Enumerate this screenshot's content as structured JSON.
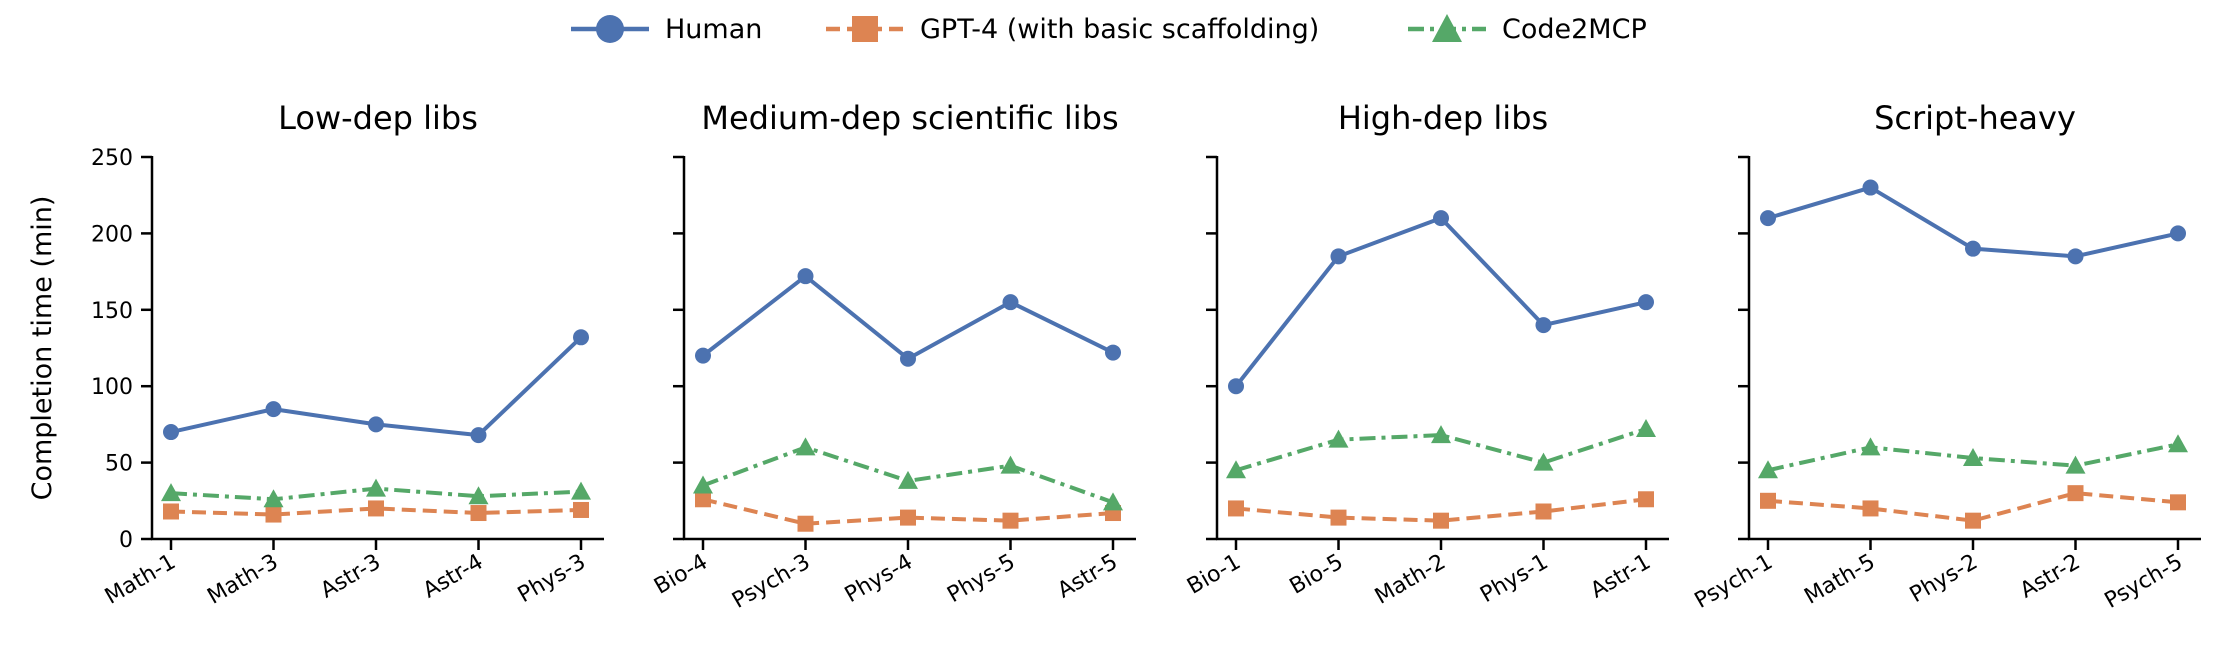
{
  "colors": {
    "human": "#4c72b0",
    "gpt4": "#dd8452",
    "code2mcp": "#55a868",
    "axis": "#000000"
  },
  "legend": {
    "entries": [
      {
        "key": "human",
        "label": "Human",
        "marker": "circle",
        "dash": "solid"
      },
      {
        "key": "gpt4",
        "label": "GPT-4 (with basic scaffolding)",
        "marker": "square",
        "dash": "dashed"
      },
      {
        "key": "code2mcp",
        "label": "Code2MCP",
        "marker": "triangle",
        "dash": "dashdot"
      }
    ]
  },
  "chart_data": [
    {
      "type": "line",
      "title": "Low-dep libs",
      "ylabel": "Completion time (min)",
      "xlabel": "",
      "ylim": [
        0,
        250
      ],
      "yticks": [
        0,
        50,
        100,
        150,
        200,
        250
      ],
      "categories": [
        "Math-1",
        "Math-3",
        "Astr-3",
        "Astr-4",
        "Phys-3"
      ],
      "series": [
        {
          "name": "Human",
          "key": "human",
          "values": [
            70,
            85,
            75,
            68,
            132
          ]
        },
        {
          "name": "GPT-4 (with basic scaffolding)",
          "key": "gpt4",
          "values": [
            18,
            16,
            20,
            17,
            19
          ]
        },
        {
          "name": "Code2MCP",
          "key": "code2mcp",
          "values": [
            30,
            26,
            33,
            28,
            31
          ]
        }
      ]
    },
    {
      "type": "line",
      "title": "Medium-dep scientific libs",
      "ylabel": "",
      "xlabel": "",
      "ylim": [
        0,
        250
      ],
      "yticks": [
        0,
        50,
        100,
        150,
        200,
        250
      ],
      "categories": [
        "Bio-4",
        "Psych-3",
        "Phys-4",
        "Phys-5",
        "Astr-5"
      ],
      "series": [
        {
          "name": "Human",
          "key": "human",
          "values": [
            120,
            172,
            118,
            155,
            122
          ]
        },
        {
          "name": "GPT-4 (with basic scaffolding)",
          "key": "gpt4",
          "values": [
            26,
            10,
            14,
            12,
            17
          ]
        },
        {
          "name": "Code2MCP",
          "key": "code2mcp",
          "values": [
            35,
            60,
            38,
            48,
            24
          ]
        }
      ]
    },
    {
      "type": "line",
      "title": "High-dep libs",
      "ylabel": "",
      "xlabel": "",
      "ylim": [
        0,
        250
      ],
      "yticks": [
        0,
        50,
        100,
        150,
        200,
        250
      ],
      "categories": [
        "Bio-1",
        "Bio-5",
        "Math-2",
        "Phys-1",
        "Astr-1"
      ],
      "series": [
        {
          "name": "Human",
          "key": "human",
          "values": [
            100,
            185,
            210,
            140,
            155
          ]
        },
        {
          "name": "GPT-4 (with basic scaffolding)",
          "key": "gpt4",
          "values": [
            20,
            14,
            12,
            18,
            26
          ]
        },
        {
          "name": "Code2MCP",
          "key": "code2mcp",
          "values": [
            45,
            65,
            68,
            50,
            72
          ]
        }
      ]
    },
    {
      "type": "line",
      "title": "Script-heavy",
      "ylabel": "",
      "xlabel": "",
      "ylim": [
        0,
        250
      ],
      "yticks": [
        0,
        50,
        100,
        150,
        200,
        250
      ],
      "categories": [
        "Psych-1",
        "Math-5",
        "Phys-2",
        "Astr-2",
        "Psych-5"
      ],
      "series": [
        {
          "name": "Human",
          "key": "human",
          "values": [
            210,
            230,
            190,
            185,
            200
          ]
        },
        {
          "name": "GPT-4 (with basic scaffolding)",
          "key": "gpt4",
          "values": [
            25,
            20,
            12,
            30,
            24
          ]
        },
        {
          "name": "Code2MCP",
          "key": "code2mcp",
          "values": [
            45,
            60,
            53,
            48,
            62
          ]
        }
      ]
    }
  ]
}
